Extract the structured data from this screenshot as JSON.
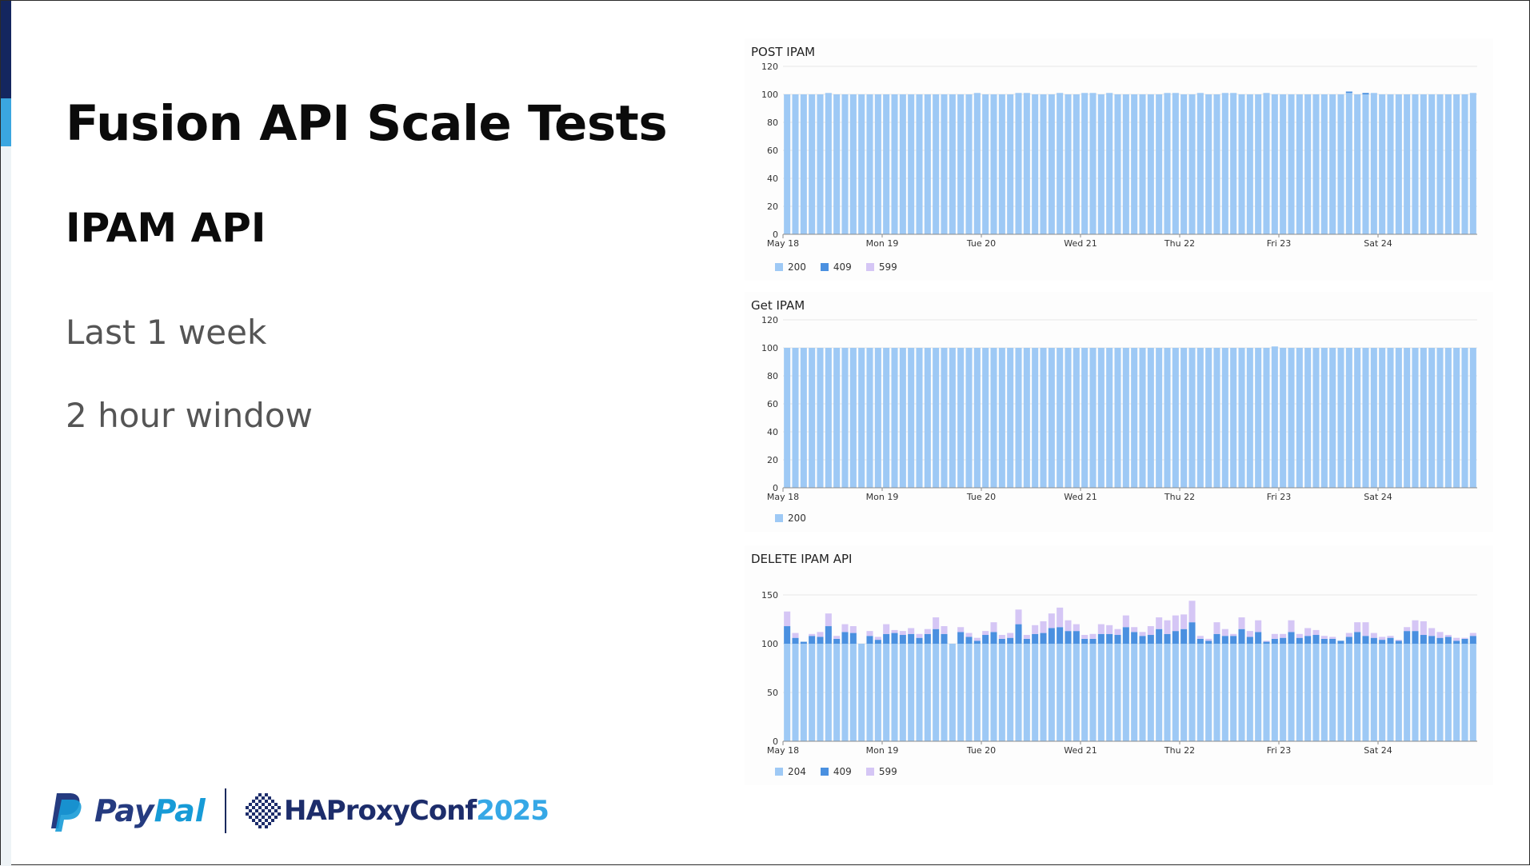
{
  "slide": {
    "title": "Fusion API Scale Tests",
    "subtitle": "IPAM API",
    "period": "Last 1 week",
    "window": "2 hour window"
  },
  "logos": {
    "paypal_prefix": "Pay",
    "paypal_suffix": "Pal",
    "haproxy_name": "HAProxyConf",
    "haproxy_year": "2025"
  },
  "colors": {
    "accent_navy": "#14265f",
    "accent_blue": "#3aa6e0",
    "s200": "#9ec9f5",
    "s204": "#9ec9f5",
    "s409": "#4a90e0",
    "s599": "#d5c6f5",
    "axis": "#8a8a8a",
    "grid": "#e6e6e6"
  },
  "chart_data": [
    {
      "panel": "post",
      "type": "bar",
      "stacked": true,
      "title": "POST IPAM",
      "xlabel": "",
      "ylabel": "",
      "ylim": [
        0,
        120
      ],
      "yticks": [
        0,
        20,
        40,
        60,
        80,
        100,
        120
      ],
      "grid": true,
      "x_tick_labels": [
        {
          "label": "May 18",
          "index": 0
        },
        {
          "label": "Mon 19",
          "index": 12
        },
        {
          "label": "Tue 20",
          "index": 24
        },
        {
          "label": "Wed 21",
          "index": 36
        },
        {
          "label": "Thu 22",
          "index": 48
        },
        {
          "label": "Fri 23",
          "index": 60
        },
        {
          "label": "Sat 24",
          "index": 72
        }
      ],
      "legend": [
        "200",
        "409",
        "599"
      ],
      "legend_position": "bottom-left",
      "series": [
        {
          "name": "200",
          "color_key": "s200",
          "values": [
            100,
            100,
            100,
            100,
            100,
            101,
            100,
            100,
            100,
            100,
            100,
            100,
            100,
            100,
            100,
            100,
            100,
            100,
            100,
            100,
            100,
            100,
            100,
            101,
            100,
            100,
            100,
            100,
            101,
            101,
            100,
            100,
            100,
            101,
            100,
            100,
            101,
            101,
            100,
            101,
            100,
            100,
            100,
            100,
            100,
            100,
            101,
            101,
            100,
            100,
            101,
            100,
            100,
            101,
            101,
            100,
            100,
            100,
            101,
            100,
            100,
            100,
            100,
            100,
            100,
            100,
            100,
            100,
            101,
            100,
            100,
            101,
            100,
            100,
            100,
            100,
            100,
            100,
            100,
            100,
            100,
            100,
            100,
            101
          ]
        },
        {
          "name": "409",
          "color_key": "s409",
          "values": [
            0,
            0,
            0,
            0,
            0,
            0,
            0,
            0,
            0,
            0,
            0,
            0,
            0,
            0,
            0,
            0,
            0,
            0,
            0,
            0,
            0,
            0,
            0,
            0,
            0,
            0,
            0,
            0,
            0,
            0,
            0,
            0,
            0,
            0,
            0,
            0,
            0,
            0,
            0,
            0,
            0,
            0,
            0,
            0,
            0,
            0,
            0,
            0,
            0,
            0,
            0,
            0,
            0,
            0,
            0,
            0,
            0,
            0,
            0,
            0,
            0,
            0,
            0,
            0,
            0,
            0,
            0,
            0,
            1,
            0,
            1,
            0,
            0,
            0,
            0,
            0,
            0,
            0,
            0,
            0,
            0,
            0,
            0,
            0
          ]
        },
        {
          "name": "599",
          "color_key": "s599",
          "values": [
            0,
            0,
            0,
            0,
            0,
            0,
            0,
            0,
            0,
            0,
            0,
            0,
            0,
            0,
            0,
            0,
            0,
            0,
            0,
            0,
            0,
            0,
            0,
            0,
            0,
            0,
            0,
            0,
            0,
            0,
            0,
            0,
            0,
            0,
            0,
            0,
            0,
            0,
            0,
            0,
            0,
            0,
            0,
            0,
            0,
            0,
            0,
            0,
            0,
            0,
            0,
            0,
            0,
            0,
            0,
            0,
            0,
            0,
            0,
            0,
            0,
            0,
            0,
            0,
            0,
            0,
            0,
            0,
            0,
            0,
            0,
            0,
            0,
            0,
            0,
            0,
            0,
            0,
            0,
            0,
            0,
            0,
            0,
            0
          ]
        }
      ]
    },
    {
      "panel": "get",
      "type": "bar",
      "stacked": true,
      "title": "Get IPAM",
      "xlabel": "",
      "ylabel": "",
      "ylim": [
        0,
        120
      ],
      "yticks": [
        0,
        20,
        40,
        60,
        80,
        100,
        120
      ],
      "grid": true,
      "x_tick_labels": [
        {
          "label": "May 18",
          "index": 0
        },
        {
          "label": "Mon 19",
          "index": 12
        },
        {
          "label": "Tue 20",
          "index": 24
        },
        {
          "label": "Wed 21",
          "index": 36
        },
        {
          "label": "Thu 22",
          "index": 48
        },
        {
          "label": "Fri 23",
          "index": 60
        },
        {
          "label": "Sat 24",
          "index": 72
        }
      ],
      "legend": [
        "200"
      ],
      "legend_position": "bottom-left",
      "series": [
        {
          "name": "200",
          "color_key": "s200",
          "values": [
            100,
            100,
            100,
            100,
            100,
            100,
            100,
            100,
            100,
            100,
            100,
            100,
            100,
            100,
            100,
            100,
            100,
            100,
            100,
            100,
            100,
            100,
            100,
            100,
            100,
            100,
            100,
            100,
            100,
            100,
            100,
            100,
            100,
            100,
            100,
            100,
            100,
            100,
            100,
            100,
            100,
            100,
            100,
            100,
            100,
            100,
            100,
            100,
            100,
            100,
            100,
            100,
            100,
            100,
            100,
            100,
            100,
            100,
            100,
            101,
            100,
            100,
            100,
            100,
            100,
            100,
            100,
            100,
            100,
            100,
            100,
            100,
            100,
            100,
            100,
            100,
            100,
            100,
            100,
            100,
            100,
            100,
            100,
            100
          ]
        }
      ]
    },
    {
      "panel": "delete",
      "type": "bar",
      "stacked": true,
      "title": "DELETE IPAM API",
      "xlabel": "",
      "ylabel": "",
      "ylim": [
        0,
        150
      ],
      "yticks": [
        0,
        50,
        100,
        150
      ],
      "grid": true,
      "x_tick_labels": [
        {
          "label": "May 18",
          "index": 0
        },
        {
          "label": "Mon 19",
          "index": 12
        },
        {
          "label": "Tue 20",
          "index": 24
        },
        {
          "label": "Wed 21",
          "index": 36
        },
        {
          "label": "Thu 22",
          "index": 48
        },
        {
          "label": "Fri 23",
          "index": 60
        },
        {
          "label": "Sat 24",
          "index": 72
        }
      ],
      "legend": [
        "204",
        "409",
        "599"
      ],
      "legend_position": "bottom-left",
      "series": [
        {
          "name": "204",
          "color_key": "s204",
          "values": [
            100,
            100,
            100,
            100,
            100,
            100,
            100,
            100,
            100,
            100,
            100,
            100,
            100,
            100,
            100,
            100,
            100,
            100,
            100,
            100,
            100,
            100,
            100,
            100,
            100,
            100,
            100,
            100,
            100,
            100,
            100,
            100,
            100,
            100,
            100,
            100,
            100,
            100,
            100,
            100,
            100,
            100,
            100,
            100,
            100,
            100,
            100,
            100,
            100,
            100,
            100,
            100,
            100,
            100,
            100,
            100,
            100,
            100,
            100,
            100,
            100,
            100,
            100,
            100,
            100,
            100,
            100,
            100,
            100,
            100,
            100,
            100,
            100,
            100,
            100,
            100,
            100,
            100,
            100,
            100,
            100,
            100,
            100,
            100
          ]
        },
        {
          "name": "409",
          "color_key": "s409",
          "values": [
            18,
            6,
            2,
            8,
            7,
            18,
            5,
            12,
            11,
            0,
            8,
            4,
            10,
            11,
            9,
            10,
            6,
            10,
            15,
            10,
            0,
            12,
            7,
            3,
            9,
            12,
            5,
            6,
            20,
            5,
            10,
            11,
            16,
            17,
            13,
            13,
            5,
            5,
            10,
            10,
            9,
            17,
            12,
            8,
            9,
            15,
            10,
            13,
            15,
            22,
            5,
            3,
            10,
            8,
            8,
            15,
            7,
            12,
            2,
            5,
            6,
            12,
            6,
            8,
            9,
            5,
            5,
            3,
            7,
            12,
            8,
            6,
            4,
            6,
            3,
            13,
            13,
            9,
            8,
            6,
            7,
            3,
            5,
            8
          ]
        },
        {
          "name": "599",
          "color_key": "s599",
          "values": [
            15,
            5,
            0,
            2,
            5,
            13,
            3,
            8,
            7,
            0,
            5,
            3,
            10,
            3,
            4,
            6,
            4,
            5,
            12,
            8,
            0,
            5,
            4,
            3,
            4,
            10,
            4,
            5,
            15,
            4,
            9,
            12,
            15,
            20,
            11,
            7,
            4,
            5,
            10,
            9,
            6,
            12,
            5,
            4,
            9,
            12,
            14,
            16,
            15,
            22,
            3,
            2,
            12,
            7,
            2,
            12,
            6,
            12,
            1,
            5,
            4,
            12,
            4,
            8,
            5,
            3,
            2,
            0,
            4,
            10,
            14,
            5,
            3,
            2,
            1,
            4,
            11,
            14,
            8,
            6,
            2,
            3,
            1,
            3
          ]
        }
      ]
    }
  ]
}
